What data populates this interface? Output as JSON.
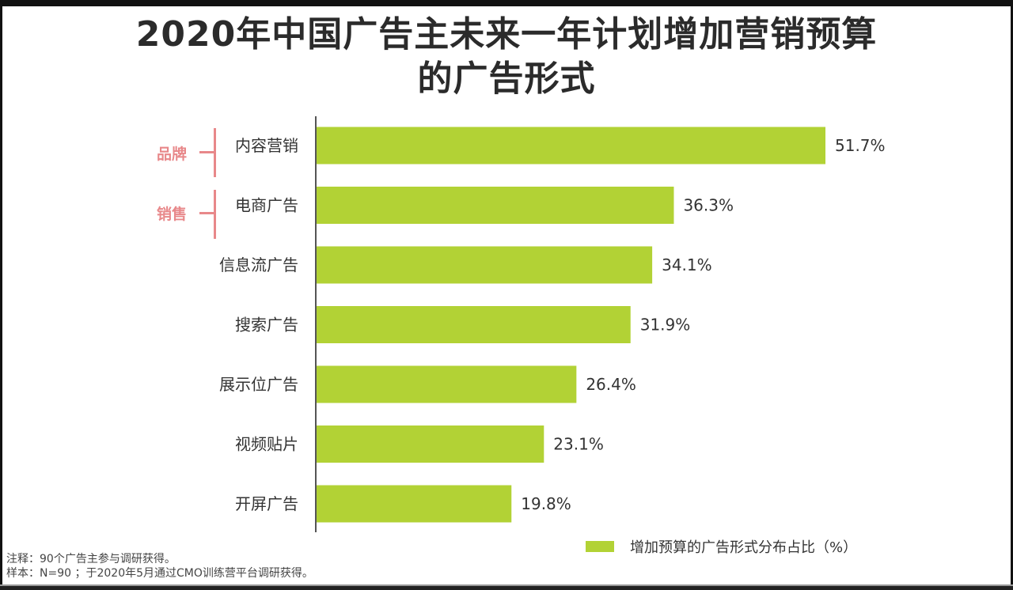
{
  "title_line1": "2020年中国广告主未来一年计划增加营销预算",
  "title_line2": "的广告形式",
  "annotations": [
    {
      "label": "品牌",
      "color": "#e8888a"
    },
    {
      "label": "销售",
      "color": "#e8888a"
    }
  ],
  "legend": {
    "label": "增加预算的广告形式分布占比（%）",
    "color": "#b2d235"
  },
  "notes": {
    "note": "注释：90个广告主参与调研获得。",
    "sample": "样本：N=90 ；于2020年5月通过CMO训练营平台调研获得。"
  },
  "chart_data": {
    "type": "bar",
    "orientation": "horizontal",
    "categories": [
      "内容营销",
      "电商广告",
      "信息流广告",
      "搜索广告",
      "展示位广告",
      "视频贴片",
      "开屏广告"
    ],
    "values": [
      51.7,
      36.3,
      34.1,
      31.9,
      26.4,
      23.1,
      19.8
    ],
    "value_labels": [
      "51.7%",
      "36.3%",
      "34.1%",
      "31.9%",
      "26.4%",
      "23.1%",
      "19.8%"
    ],
    "xlim": [
      0,
      51.7
    ],
    "bar_color": "#b2d235",
    "grid": false,
    "legend_position": "bottom-right"
  }
}
